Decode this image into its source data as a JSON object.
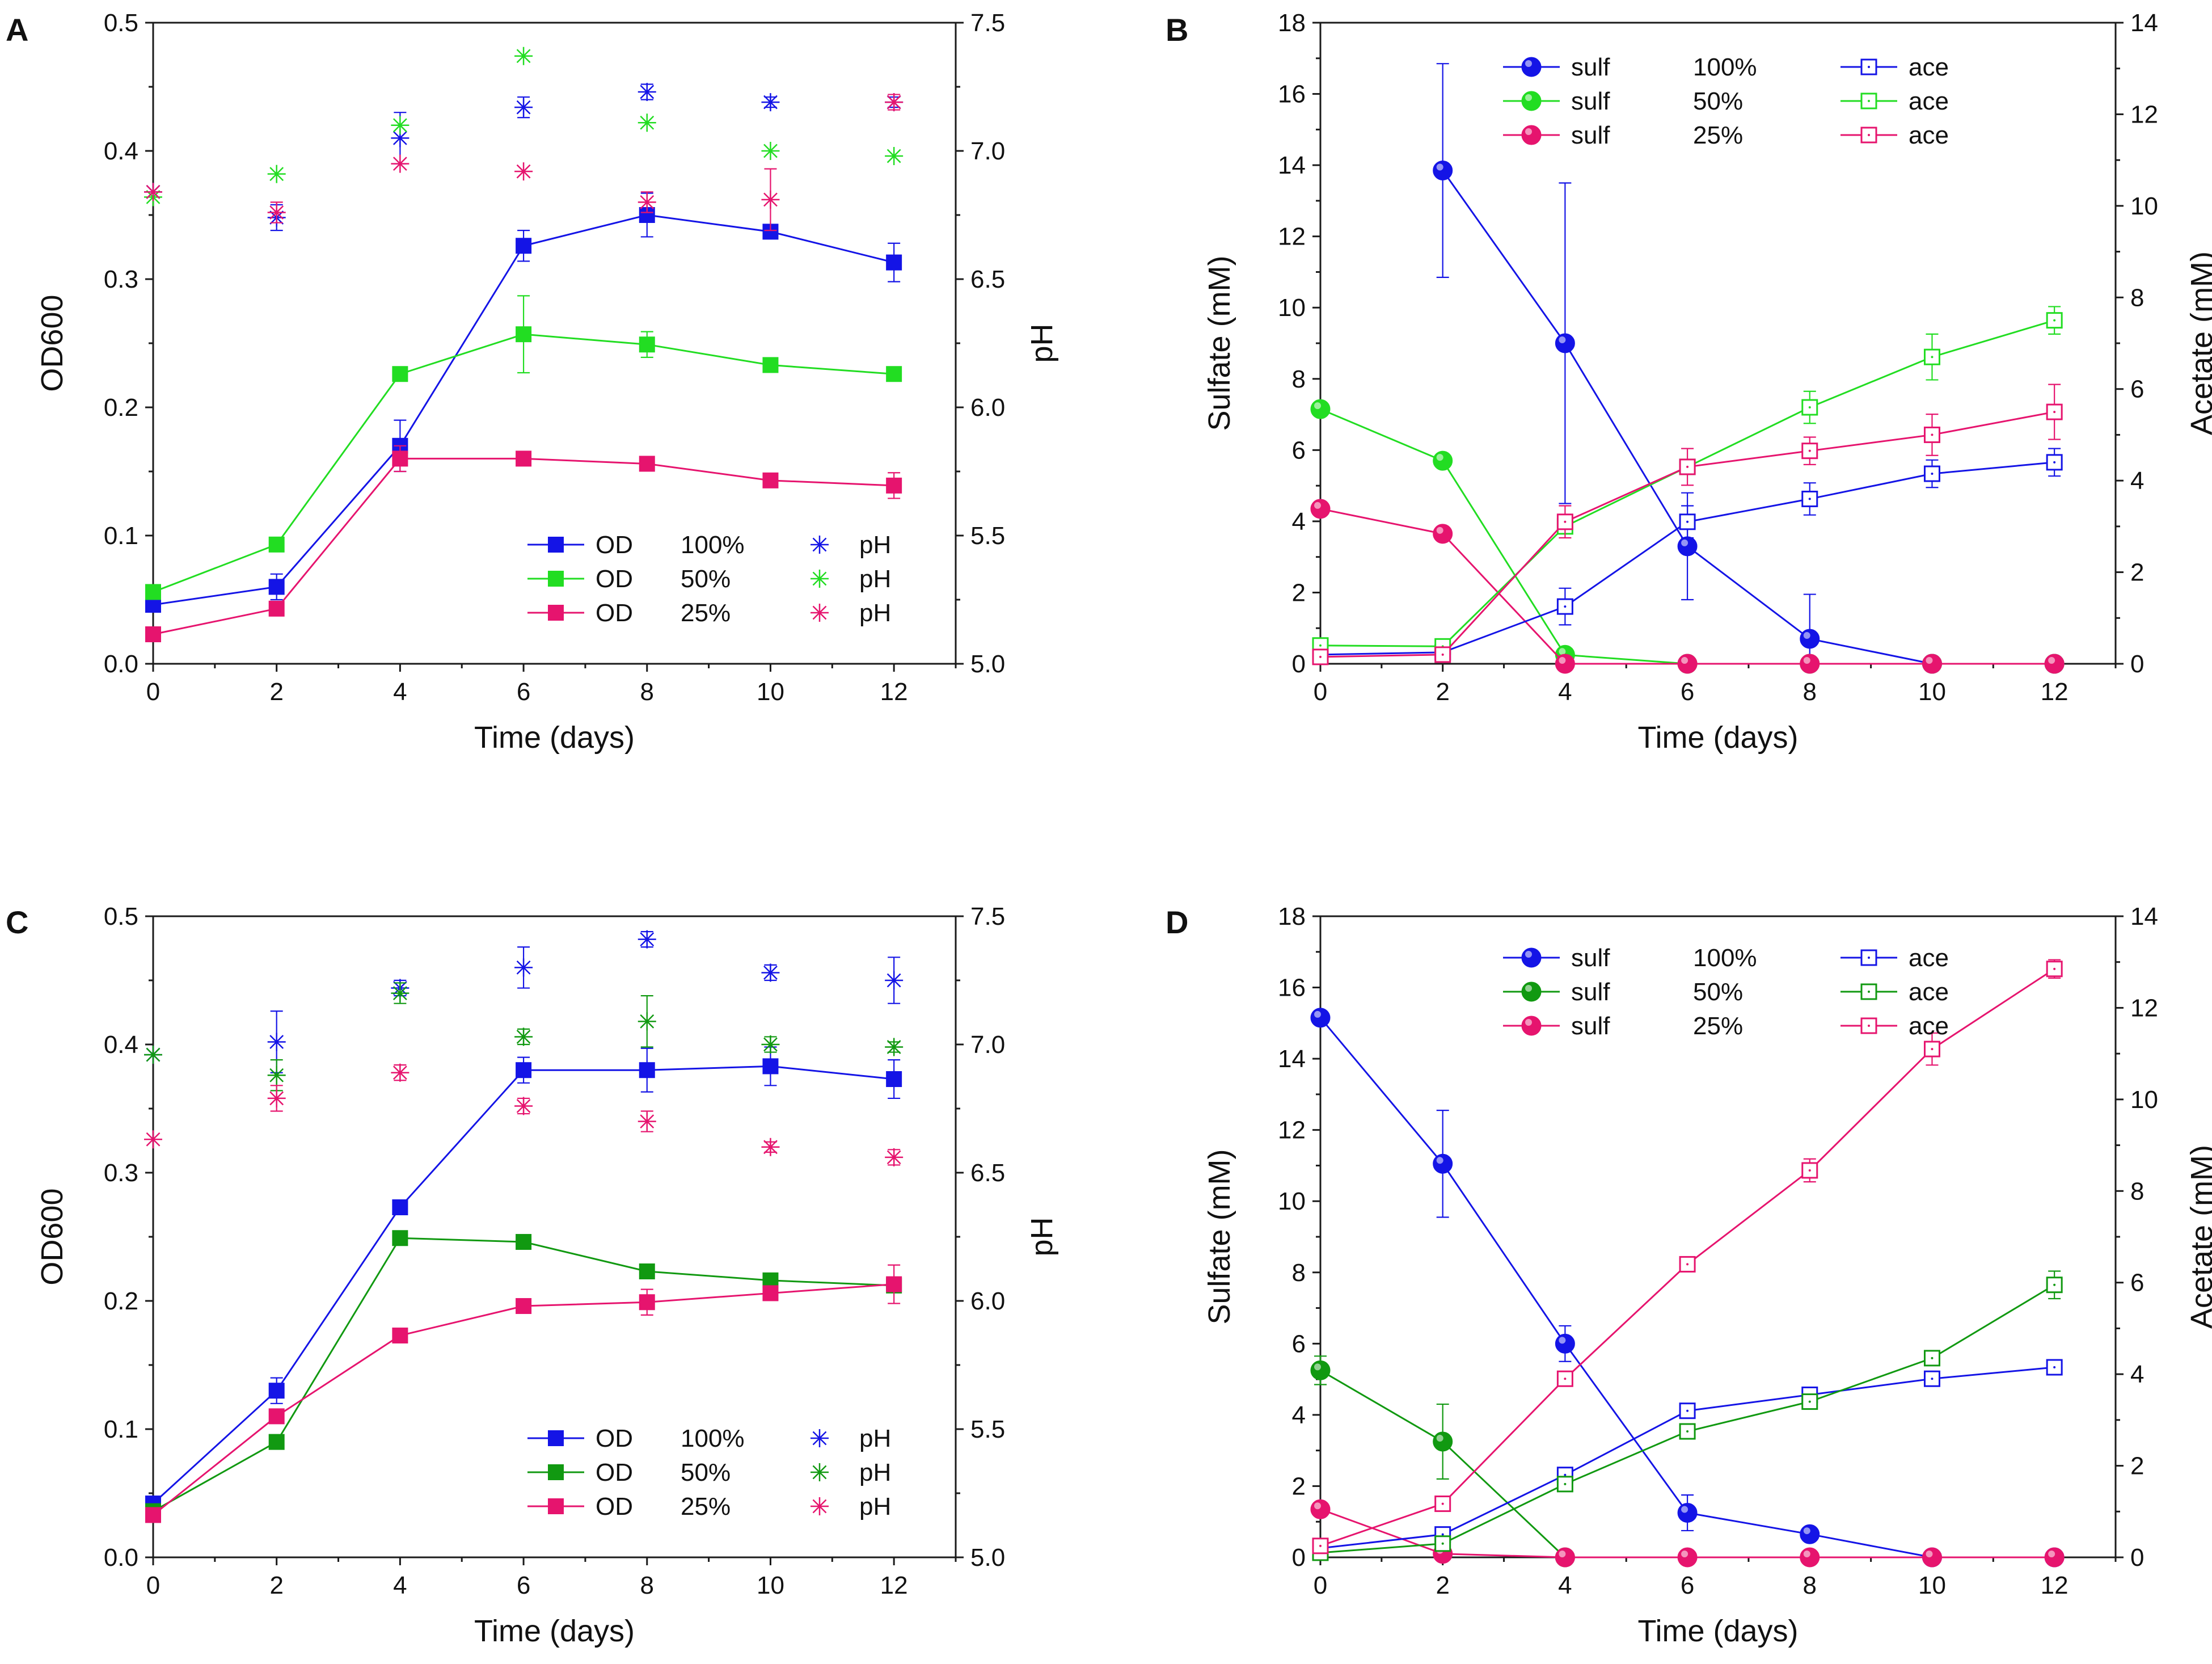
{
  "figure": {
    "colors": {
      "blue": "#1414e6",
      "green_bright": "#22dd22",
      "green_dark": "#119911",
      "pink": "#e6146e"
    }
  },
  "chart_data": [
    {
      "panel": "A",
      "type": "scatter",
      "xlabel": "Time (days)",
      "ylabel": "OD600",
      "y2label": "pH",
      "xlim": [
        0,
        13
      ],
      "ylim": [
        0,
        0.5
      ],
      "y2lim": [
        5.0,
        7.5
      ],
      "xticks": [
        "0",
        "2",
        "4",
        "6",
        "8",
        "10",
        "12"
      ],
      "yticks": [
        "0.0",
        "0.1",
        "0.2",
        "0.3",
        "0.4",
        "0.5"
      ],
      "y2ticks": [
        "5.0",
        "5.5",
        "6.0",
        "6.5",
        "7.0",
        "7.5"
      ],
      "legend": {
        "placement": "bottom-right",
        "rows": [
          {
            "a": "OD",
            "pct": "100%",
            "b": "pH"
          },
          {
            "a": "OD",
            "pct": "50%",
            "b": "pH"
          },
          {
            "a": "OD",
            "pct": "25%",
            "b": "pH"
          }
        ]
      },
      "series": [
        {
          "name": "OD 100%",
          "axis": "left",
          "kind": "line",
          "marker": "square-filled",
          "color": "#1414e6",
          "x": [
            0,
            2,
            4,
            6,
            8,
            10,
            12
          ],
          "values": [
            0.046,
            0.06,
            0.17,
            0.326,
            0.35,
            0.337,
            0.313
          ],
          "err": [
            0,
            0.01,
            0.02,
            0.012,
            0.017,
            0.005,
            0.015
          ]
        },
        {
          "name": "OD 50%",
          "axis": "left",
          "kind": "line",
          "marker": "square-filled",
          "color": "#22dd22",
          "x": [
            0,
            2,
            4,
            6,
            8,
            10,
            12
          ],
          "values": [
            0.056,
            0.093,
            0.226,
            0.257,
            0.249,
            0.233,
            0.226
          ],
          "err": [
            0,
            0,
            0,
            0.03,
            0.01,
            0,
            0
          ]
        },
        {
          "name": "OD 25%",
          "axis": "left",
          "kind": "line",
          "marker": "square-filled",
          "color": "#e6146e",
          "x": [
            0,
            2,
            4,
            6,
            8,
            10,
            12
          ],
          "values": [
            0.023,
            0.043,
            0.16,
            0.16,
            0.156,
            0.143,
            0.139
          ],
          "err": [
            0,
            0,
            0.01,
            0,
            0,
            0,
            0.01
          ]
        },
        {
          "name": "pH 100%",
          "axis": "right",
          "kind": "points",
          "marker": "asterisk",
          "color": "#1414e6",
          "x": [
            0,
            2,
            4,
            6,
            8,
            10,
            12
          ],
          "values": [
            6.84,
            6.74,
            7.05,
            7.17,
            7.23,
            7.19,
            7.19
          ],
          "err": [
            0,
            0.05,
            0.1,
            0.04,
            0.03,
            0.02,
            0.02
          ]
        },
        {
          "name": "pH 50%",
          "axis": "right",
          "kind": "points",
          "marker": "asterisk",
          "color": "#22dd22",
          "x": [
            0,
            2,
            4,
            6,
            8,
            10,
            12
          ],
          "values": [
            6.82,
            6.91,
            7.1,
            7.37,
            7.11,
            7.0,
            6.98
          ],
          "err": [
            0,
            0,
            0,
            0,
            0,
            0,
            0
          ]
        },
        {
          "name": "pH 25%",
          "axis": "right",
          "kind": "points",
          "marker": "asterisk",
          "color": "#e6146e",
          "x": [
            0,
            2,
            4,
            6,
            8,
            10,
            12
          ],
          "values": [
            6.84,
            6.76,
            6.95,
            6.92,
            6.8,
            6.81,
            7.19
          ],
          "err": [
            0,
            0.04,
            0,
            0,
            0.04,
            0.12,
            0.03
          ]
        }
      ]
    },
    {
      "panel": "B",
      "type": "line",
      "xlabel": "Time (days)",
      "ylabel": "Sulfate (mM)",
      "y2label": "Acetate (mM)",
      "xlim": [
        0,
        13
      ],
      "ylim": [
        0,
        18
      ],
      "y2lim": [
        0,
        14
      ],
      "xticks": [
        "0",
        "2",
        "4",
        "6",
        "8",
        "10",
        "12"
      ],
      "yticks": [
        "0",
        "2",
        "4",
        "6",
        "8",
        "10",
        "12",
        "14",
        "16",
        "18"
      ],
      "y2ticks": [
        "0",
        "2",
        "4",
        "6",
        "8",
        "10",
        "12",
        "14"
      ],
      "legend": {
        "placement": "top-center",
        "rows": [
          {
            "a": "sulf",
            "pct": "100%",
            "b": "ace"
          },
          {
            "a": "sulf",
            "pct": "50%",
            "b": "ace"
          },
          {
            "a": "sulf",
            "pct": "25%",
            "b": "ace"
          }
        ]
      },
      "series": [
        {
          "name": "sulf 100%",
          "axis": "left",
          "kind": "line",
          "marker": "sphere",
          "color": "#1414e6",
          "x": [
            2,
            4,
            6,
            8,
            10,
            12
          ],
          "values": [
            13.85,
            9.0,
            3.3,
            0.7,
            0.0,
            0.0
          ],
          "err": [
            3.0,
            4.5,
            1.5,
            1.25,
            0,
            0
          ]
        },
        {
          "name": "sulf 50%",
          "axis": "left",
          "kind": "line",
          "marker": "sphere",
          "color": "#22dd22",
          "x": [
            0,
            2,
            4,
            6,
            8,
            10,
            12
          ],
          "values": [
            7.15,
            5.7,
            0.25,
            0.0,
            0.0,
            0.0,
            0.0
          ],
          "err": [
            0,
            0,
            0,
            0,
            0,
            0,
            0
          ]
        },
        {
          "name": "sulf 25%",
          "axis": "left",
          "kind": "line",
          "marker": "sphere",
          "color": "#e6146e",
          "x": [
            0,
            2,
            4,
            6,
            8,
            10,
            12
          ],
          "values": [
            4.35,
            3.65,
            0.0,
            0.0,
            0.0,
            0.0,
            0.0
          ],
          "err": [
            0,
            0,
            0,
            0,
            0,
            0,
            0
          ]
        },
        {
          "name": "ace 100%",
          "axis": "right",
          "kind": "line",
          "marker": "square-open",
          "color": "#1414e6",
          "x": [
            0,
            2,
            4,
            6,
            8,
            10,
            12
          ],
          "values": [
            0.2,
            0.25,
            1.25,
            3.1,
            3.6,
            4.15,
            4.4
          ],
          "err": [
            0,
            0,
            0.4,
            0.35,
            0.35,
            0.3,
            0.3
          ]
        },
        {
          "name": "ace 50%",
          "axis": "right",
          "kind": "line",
          "marker": "square-open",
          "color": "#22dd22",
          "x": [
            0,
            2,
            4,
            6,
            8,
            10,
            12
          ],
          "values": [
            0.4,
            0.38,
            3.0,
            4.3,
            5.6,
            6.7,
            7.5
          ],
          "err": [
            0,
            0,
            0.15,
            0.15,
            0.35,
            0.5,
            0.3
          ]
        },
        {
          "name": "ace 25%",
          "axis": "right",
          "kind": "line",
          "marker": "square-open",
          "color": "#e6146e",
          "x": [
            0,
            2,
            4,
            6,
            8,
            10,
            12
          ],
          "values": [
            0.15,
            0.2,
            3.1,
            4.3,
            4.65,
            5.0,
            5.5
          ],
          "err": [
            0,
            0,
            0.35,
            0.4,
            0.3,
            0.45,
            0.6
          ]
        }
      ]
    },
    {
      "panel": "C",
      "type": "scatter",
      "xlabel": "Time (days)",
      "ylabel": "OD600",
      "y2label": "pH",
      "xlim": [
        0,
        13
      ],
      "ylim": [
        0,
        0.5
      ],
      "y2lim": [
        5.0,
        7.5
      ],
      "xticks": [
        "0",
        "2",
        "4",
        "6",
        "8",
        "10",
        "12"
      ],
      "yticks": [
        "0.0",
        "0.1",
        "0.2",
        "0.3",
        "0.4",
        "0.5"
      ],
      "y2ticks": [
        "5.0",
        "5.5",
        "6.0",
        "6.5",
        "7.0",
        "7.5"
      ],
      "legend": {
        "placement": "bottom-right",
        "rows": [
          {
            "a": "OD",
            "pct": "100%",
            "b": "pH"
          },
          {
            "a": "OD",
            "pct": "50%",
            "b": "pH"
          },
          {
            "a": "OD",
            "pct": "25%",
            "b": "pH"
          }
        ]
      },
      "series": [
        {
          "name": "OD 100%",
          "axis": "left",
          "kind": "line",
          "marker": "square-filled",
          "color": "#1414e6",
          "x": [
            0,
            2,
            4,
            6,
            8,
            10,
            12
          ],
          "values": [
            0.042,
            0.13,
            0.273,
            0.38,
            0.38,
            0.383,
            0.373
          ],
          "err": [
            0,
            0.01,
            0,
            0.01,
            0.017,
            0.015,
            0.015
          ]
        },
        {
          "name": "OD 50%",
          "axis": "left",
          "kind": "line",
          "marker": "square-filled",
          "color": "#119911",
          "x": [
            0,
            2,
            4,
            6,
            8,
            10,
            12
          ],
          "values": [
            0.036,
            0.09,
            0.249,
            0.246,
            0.223,
            0.216,
            0.212
          ],
          "err": [
            0,
            0,
            0,
            0,
            0,
            0,
            0
          ]
        },
        {
          "name": "OD 25%",
          "axis": "left",
          "kind": "line",
          "marker": "square-filled",
          "color": "#e6146e",
          "x": [
            0,
            2,
            4,
            6,
            8,
            10,
            12
          ],
          "values": [
            0.033,
            0.11,
            0.173,
            0.196,
            0.199,
            0.206,
            0.213
          ],
          "err": [
            0,
            0,
            0,
            0,
            0.01,
            0,
            0.015
          ]
        },
        {
          "name": "pH 100%",
          "axis": "right",
          "kind": "points",
          "marker": "asterisk",
          "color": "#1414e6",
          "x": [
            0,
            2,
            4,
            6,
            8,
            10,
            12
          ],
          "values": [
            6.96,
            7.01,
            7.22,
            7.3,
            7.41,
            7.28,
            7.25
          ],
          "err": [
            0,
            0.12,
            0.03,
            0.08,
            0.03,
            0.03,
            0.09
          ]
        },
        {
          "name": "pH 50%",
          "axis": "right",
          "kind": "points",
          "marker": "asterisk",
          "color": "#119911",
          "x": [
            0,
            2,
            4,
            6,
            8,
            10,
            12
          ],
          "values": [
            6.96,
            6.88,
            7.2,
            7.03,
            7.09,
            7.0,
            6.99
          ],
          "err": [
            0,
            0.06,
            0.04,
            0.03,
            0.1,
            0.03,
            0.02
          ]
        },
        {
          "name": "pH 25%",
          "axis": "right",
          "kind": "points",
          "marker": "asterisk",
          "color": "#e6146e",
          "x": [
            0,
            2,
            4,
            6,
            8,
            10,
            12
          ],
          "values": [
            6.63,
            6.79,
            6.89,
            6.76,
            6.7,
            6.6,
            6.56
          ],
          "err": [
            0,
            0.05,
            0.03,
            0.03,
            0.04,
            0.02,
            0.03
          ]
        }
      ]
    },
    {
      "panel": "D",
      "type": "line",
      "xlabel": "Time (days)",
      "ylabel": "Sulfate (mM)",
      "y2label": "Acetate (mM)",
      "xlim": [
        0,
        13
      ],
      "ylim": [
        0,
        18
      ],
      "y2lim": [
        0,
        14
      ],
      "xticks": [
        "0",
        "2",
        "4",
        "6",
        "8",
        "10",
        "12"
      ],
      "yticks": [
        "0",
        "2",
        "4",
        "6",
        "8",
        "10",
        "12",
        "14",
        "16",
        "18"
      ],
      "y2ticks": [
        "0",
        "2",
        "4",
        "6",
        "8",
        "10",
        "12",
        "14"
      ],
      "legend": {
        "placement": "top-center",
        "rows": [
          {
            "a": "sulf",
            "pct": "100%",
            "b": "ace"
          },
          {
            "a": "sulf",
            "pct": "50%",
            "b": "ace"
          },
          {
            "a": "sulf",
            "pct": "25%",
            "b": "ace"
          }
        ]
      },
      "series": [
        {
          "name": "sulf 100%",
          "axis": "left",
          "kind": "line",
          "marker": "sphere",
          "color": "#1414e6",
          "x": [
            0,
            2,
            4,
            6,
            8,
            10,
            12
          ],
          "values": [
            15.15,
            11.05,
            6.0,
            1.25,
            0.65,
            0.0,
            0.0
          ],
          "err": [
            0,
            1.5,
            0.5,
            0.5,
            0.2,
            0,
            0
          ]
        },
        {
          "name": "sulf 50%",
          "axis": "left",
          "kind": "line",
          "marker": "sphere",
          "color": "#119911",
          "x": [
            0,
            2,
            4
          ],
          "values": [
            5.25,
            3.25,
            0.0
          ],
          "err": [
            0.4,
            1.05,
            0
          ]
        },
        {
          "name": "sulf 25%",
          "axis": "left",
          "kind": "line",
          "marker": "sphere",
          "color": "#e6146e",
          "x": [
            0,
            2,
            4,
            6,
            8,
            10,
            12
          ],
          "values": [
            1.35,
            0.1,
            0.0,
            0.0,
            0.0,
            0.0,
            0.0
          ],
          "err": [
            0,
            0,
            0,
            0,
            0,
            0,
            0
          ]
        },
        {
          "name": "ace 100%",
          "axis": "right",
          "kind": "line",
          "marker": "square-open",
          "color": "#1414e6",
          "x": [
            0,
            2,
            4,
            6,
            8,
            10,
            12
          ],
          "values": [
            0.2,
            0.5,
            1.8,
            3.2,
            3.55,
            3.9,
            4.15
          ],
          "err": [
            0,
            0,
            0,
            0.1,
            0.15,
            0.1,
            0.15
          ]
        },
        {
          "name": "ace 50%",
          "axis": "right",
          "kind": "line",
          "marker": "square-open",
          "color": "#119911",
          "x": [
            0,
            2,
            4,
            6,
            8,
            10,
            12
          ],
          "values": [
            0.1,
            0.3,
            1.6,
            2.75,
            3.4,
            4.35,
            5.95
          ],
          "err": [
            0,
            0,
            0,
            0,
            0,
            0,
            0.3
          ]
        },
        {
          "name": "ace 25%",
          "axis": "right",
          "kind": "line",
          "marker": "square-open",
          "color": "#e6146e",
          "x": [
            0,
            2,
            4,
            6,
            8,
            10,
            12
          ],
          "values": [
            0.25,
            1.17,
            3.9,
            6.4,
            8.45,
            11.1,
            12.85
          ],
          "err": [
            0,
            0,
            0,
            0,
            0.25,
            0.35,
            0.2
          ]
        }
      ]
    }
  ]
}
